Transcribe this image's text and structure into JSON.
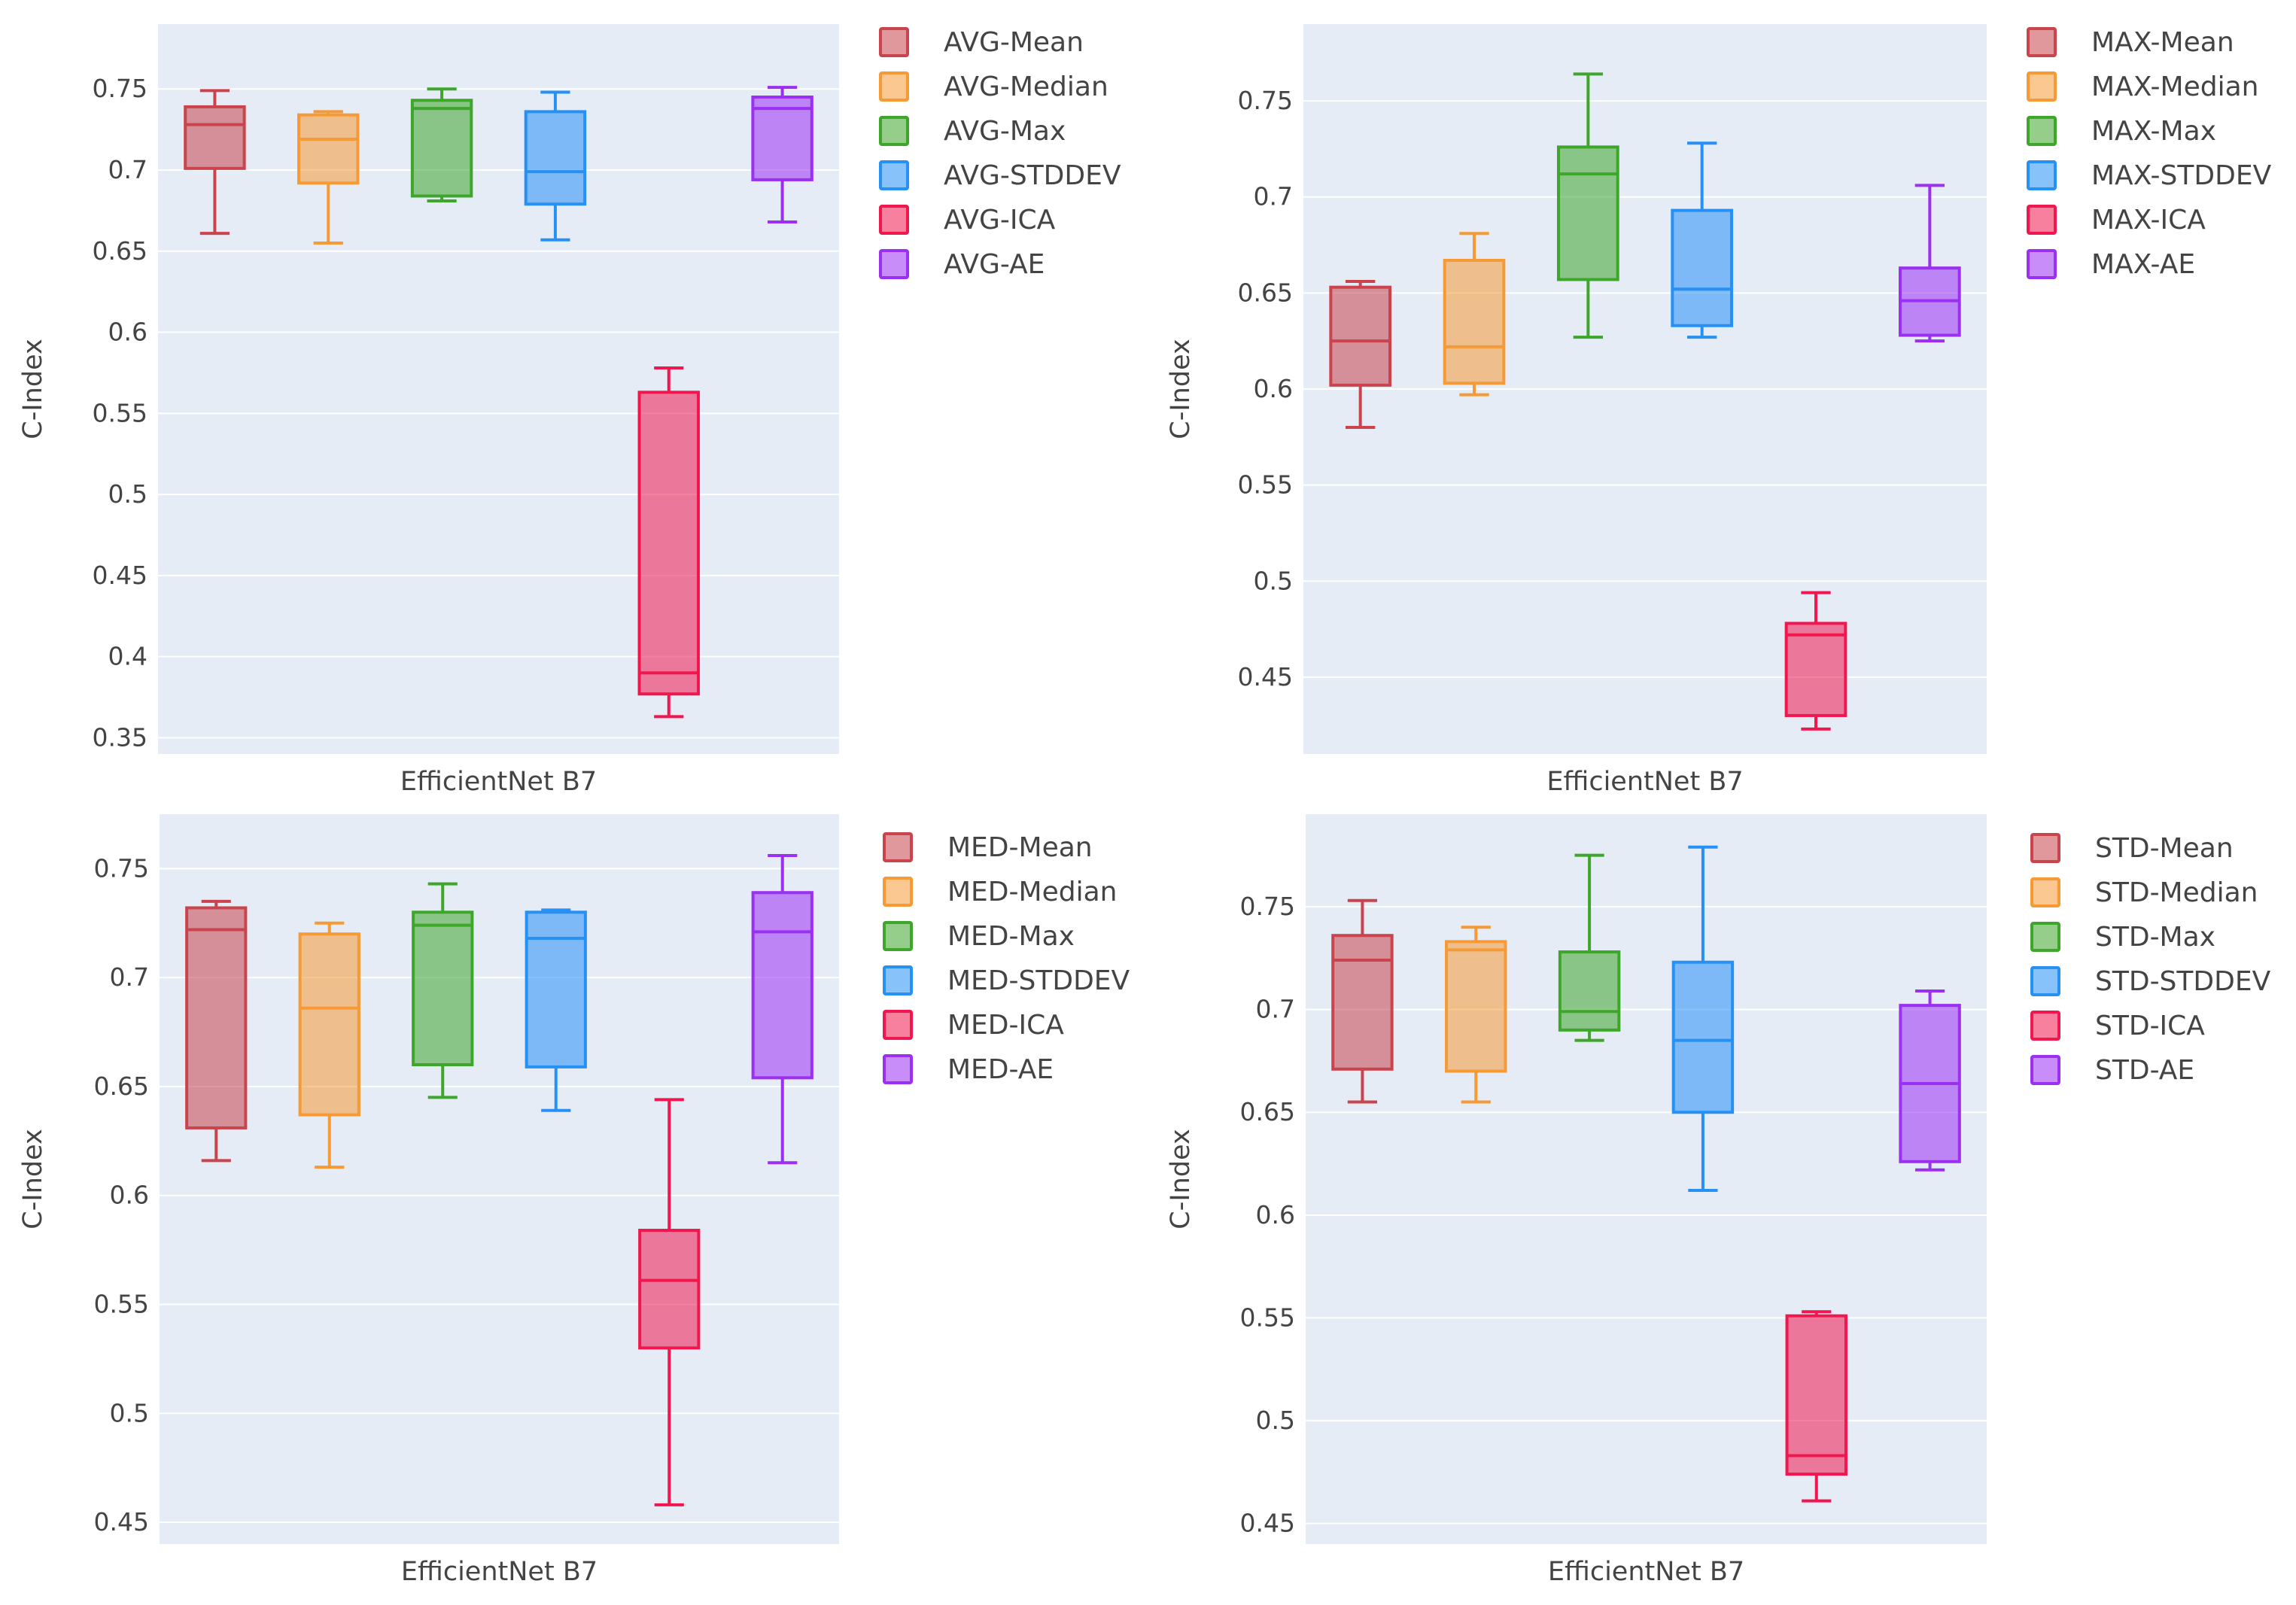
{
  "chart_data": [
    {
      "type": "box",
      "ylabel": "C-Index",
      "xlabel": "EfficientNet B7",
      "ylim": [
        0.34,
        0.79
      ],
      "yticks": [
        0.35,
        0.4,
        0.45,
        0.5,
        0.55,
        0.6,
        0.65,
        0.7,
        0.75
      ],
      "ytick_labels": [
        "0.35",
        "0.4",
        "0.45",
        "0.5",
        "0.55",
        "0.6",
        "0.65",
        "0.7",
        "0.75"
      ],
      "series": [
        {
          "name": "AVG-Mean",
          "color": "#c9444d",
          "min": 0.661,
          "q1": 0.701,
          "median": 0.728,
          "q3": 0.739,
          "max": 0.749
        },
        {
          "name": "AVG-Median",
          "color": "#f59a34",
          "min": 0.655,
          "q1": 0.692,
          "median": 0.719,
          "q3": 0.734,
          "max": 0.736
        },
        {
          "name": "AVG-Max",
          "color": "#3ea62b",
          "min": 0.681,
          "q1": 0.684,
          "median": 0.738,
          "q3": 0.743,
          "max": 0.75
        },
        {
          "name": "AVG-STDDEV",
          "color": "#2690f5",
          "min": 0.657,
          "q1": 0.679,
          "median": 0.699,
          "q3": 0.736,
          "max": 0.748
        },
        {
          "name": "AVG-ICA",
          "color": "#f0174e",
          "min": 0.363,
          "q1": 0.377,
          "median": 0.39,
          "q3": 0.563,
          "max": 0.578
        },
        {
          "name": "AVG-AE",
          "color": "#9b2ff2",
          "min": 0.668,
          "q1": 0.694,
          "median": 0.738,
          "q3": 0.745,
          "max": 0.751
        }
      ]
    },
    {
      "type": "box",
      "ylabel": "C-Index",
      "xlabel": "EfficientNet B7",
      "ylim": [
        0.41,
        0.79
      ],
      "yticks": [
        0.45,
        0.5,
        0.55,
        0.6,
        0.65,
        0.7,
        0.75
      ],
      "ytick_labels": [
        "0.45",
        "0.5",
        "0.55",
        "0.6",
        "0.65",
        "0.7",
        "0.75"
      ],
      "series": [
        {
          "name": "MAX-Mean",
          "color": "#c9444d",
          "min": 0.58,
          "q1": 0.602,
          "median": 0.625,
          "q3": 0.653,
          "max": 0.656
        },
        {
          "name": "MAX-Median",
          "color": "#f59a34",
          "min": 0.597,
          "q1": 0.603,
          "median": 0.622,
          "q3": 0.667,
          "max": 0.681
        },
        {
          "name": "MAX-Max",
          "color": "#3ea62b",
          "min": 0.627,
          "q1": 0.657,
          "median": 0.712,
          "q3": 0.726,
          "max": 0.764
        },
        {
          "name": "MAX-STDDEV",
          "color": "#2690f5",
          "min": 0.627,
          "q1": 0.633,
          "median": 0.652,
          "q3": 0.693,
          "max": 0.728
        },
        {
          "name": "MAX-ICA",
          "color": "#f0174e",
          "min": 0.423,
          "q1": 0.43,
          "median": 0.472,
          "q3": 0.478,
          "max": 0.494
        },
        {
          "name": "MAX-AE",
          "color": "#9b2ff2",
          "min": 0.625,
          "q1": 0.628,
          "median": 0.646,
          "q3": 0.663,
          "max": 0.706
        }
      ]
    },
    {
      "type": "box",
      "ylabel": "C-Index",
      "xlabel": "EfficientNet B7",
      "ylim": [
        0.44,
        0.775
      ],
      "yticks": [
        0.45,
        0.5,
        0.55,
        0.6,
        0.65,
        0.7,
        0.75
      ],
      "ytick_labels": [
        "0.45",
        "0.5",
        "0.55",
        "0.6",
        "0.65",
        "0.7",
        "0.75"
      ],
      "series": [
        {
          "name": "MED-Mean",
          "color": "#c9444d",
          "min": 0.616,
          "q1": 0.631,
          "median": 0.722,
          "q3": 0.732,
          "max": 0.735
        },
        {
          "name": "MED-Median",
          "color": "#f59a34",
          "min": 0.613,
          "q1": 0.637,
          "median": 0.686,
          "q3": 0.72,
          "max": 0.725
        },
        {
          "name": "MED-Max",
          "color": "#3ea62b",
          "min": 0.645,
          "q1": 0.66,
          "median": 0.724,
          "q3": 0.73,
          "max": 0.743
        },
        {
          "name": "MED-STDDEV",
          "color": "#2690f5",
          "min": 0.639,
          "q1": 0.659,
          "median": 0.718,
          "q3": 0.73,
          "max": 0.731
        },
        {
          "name": "MED-ICA",
          "color": "#f0174e",
          "min": 0.458,
          "q1": 0.53,
          "median": 0.561,
          "q3": 0.584,
          "max": 0.644
        },
        {
          "name": "MED-AE",
          "color": "#9b2ff2",
          "min": 0.615,
          "q1": 0.654,
          "median": 0.721,
          "q3": 0.739,
          "max": 0.756
        }
      ]
    },
    {
      "type": "box",
      "ylabel": "C-Index",
      "xlabel": "EfficientNet B7",
      "ylim": [
        0.44,
        0.795
      ],
      "yticks": [
        0.45,
        0.5,
        0.55,
        0.6,
        0.65,
        0.7,
        0.75
      ],
      "ytick_labels": [
        "0.45",
        "0.5",
        "0.55",
        "0.6",
        "0.65",
        "0.7",
        "0.75"
      ],
      "series": [
        {
          "name": "STD-Mean",
          "color": "#c9444d",
          "min": 0.655,
          "q1": 0.671,
          "median": 0.724,
          "q3": 0.736,
          "max": 0.753
        },
        {
          "name": "STD-Median",
          "color": "#f59a34",
          "min": 0.655,
          "q1": 0.67,
          "median": 0.729,
          "q3": 0.733,
          "max": 0.74
        },
        {
          "name": "STD-Max",
          "color": "#3ea62b",
          "min": 0.685,
          "q1": 0.69,
          "median": 0.699,
          "q3": 0.728,
          "max": 0.775
        },
        {
          "name": "STD-STDDEV",
          "color": "#2690f5",
          "min": 0.612,
          "q1": 0.65,
          "median": 0.685,
          "q3": 0.723,
          "max": 0.779
        },
        {
          "name": "STD-ICA",
          "color": "#f0174e",
          "min": 0.461,
          "q1": 0.474,
          "median": 0.483,
          "q3": 0.551,
          "max": 0.553
        },
        {
          "name": "STD-AE",
          "color": "#9b2ff2",
          "min": 0.622,
          "q1": 0.626,
          "median": 0.664,
          "q3": 0.702,
          "max": 0.709
        }
      ]
    }
  ]
}
